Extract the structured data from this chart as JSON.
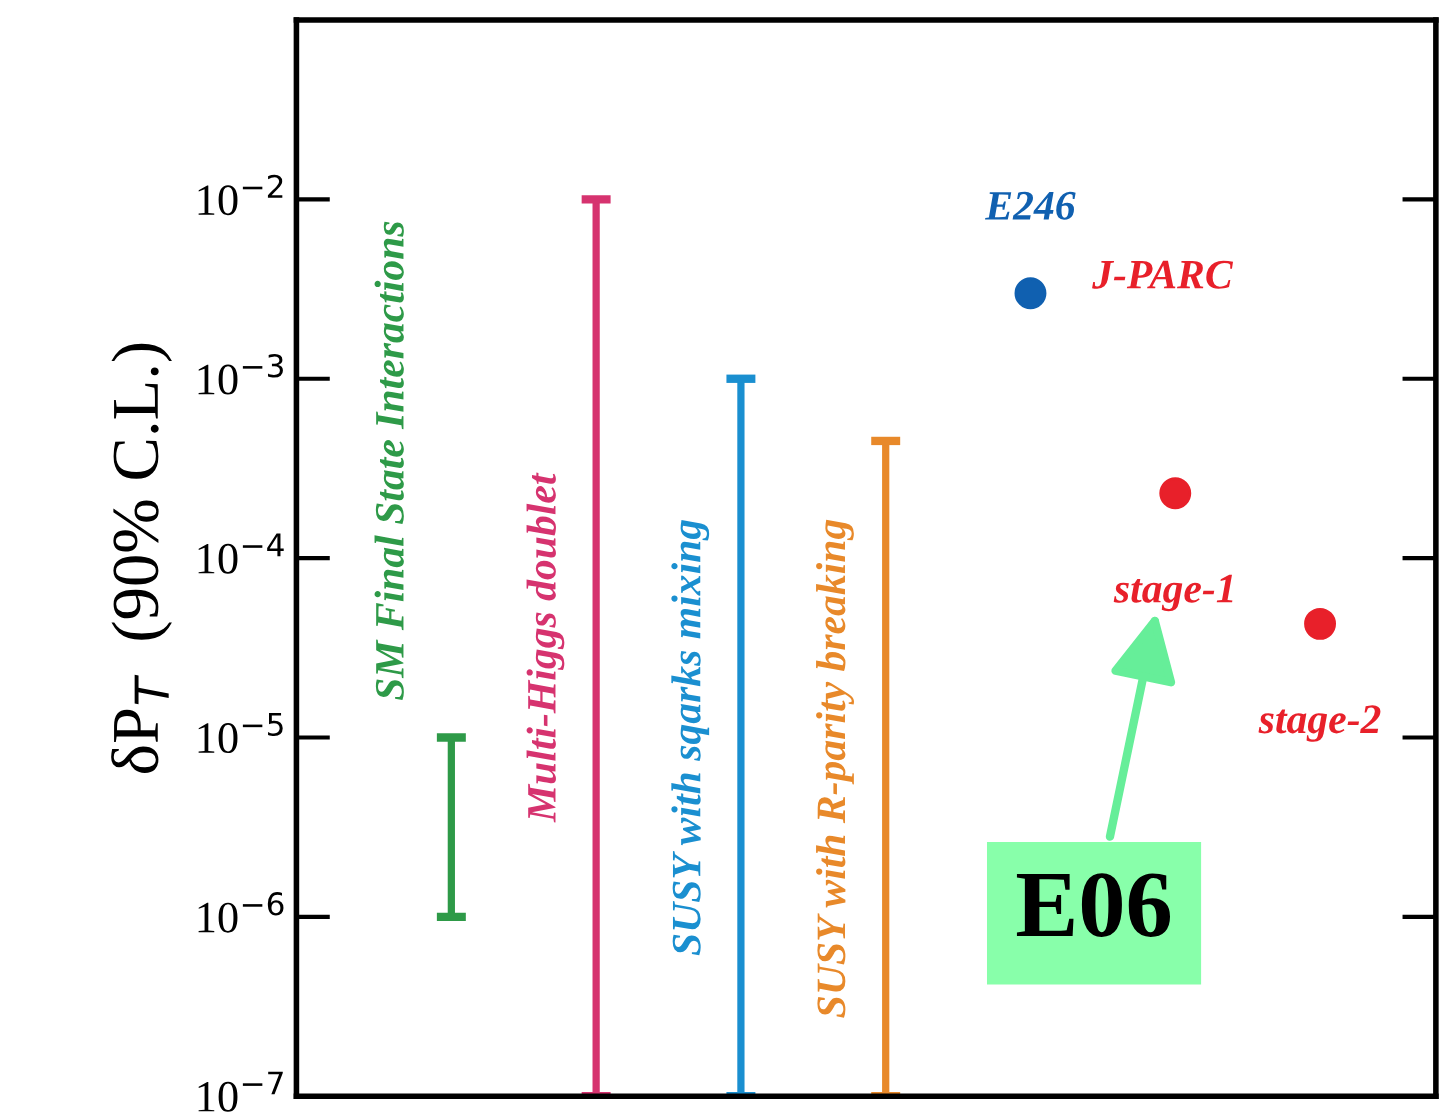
{
  "chart_data": {
    "type": "bar",
    "ylabel": "δP$_{T}$  (90% C.L.)",
    "categories": [
      "SM Final State Interactions",
      "Multi-Higgs doublet",
      "SUSY with sqarks mixing",
      "SUSY with R-parity breaking",
      "E246",
      "stage-1",
      "stage-2"
    ],
    "series": [
      {
        "base": [
          1e-06,
          1e-07,
          1e-07,
          1e-07,
          null,
          null,
          null
        ],
        "values": [
          9e-06,
          0.01,
          0.001,
          0.00045,
          null,
          null,
          null
        ],
        "colors": [
          "#2e9a48",
          "#d6336f",
          "#1a8fd0",
          "#e8892a",
          null,
          null,
          null
        ]
      },
      {
        "type": "scatter",
        "marker": "circle",
        "values": [
          null,
          null,
          null,
          null,
          0.003,
          0.00023,
          4.3e-05
        ],
        "colors": [
          null,
          null,
          null,
          null,
          "#1060b0",
          "#e8202a",
          "#e8202a"
        ]
      }
    ],
    "log": "y",
    "ylim": [
      1e-07,
      0.1
    ],
    "yticks": [
      {
        "value": 1e-07,
        "label": "10$^{−7}$"
      },
      {
        "value": 1e-06,
        "label": "10$^{−6}$"
      },
      {
        "value": 1e-05,
        "label": "10$^{−5}$"
      },
      {
        "value": 0.0001,
        "label": "10$^{−4}$"
      },
      {
        "value": 0.001,
        "label": "10$^{−3}$"
      },
      {
        "value": 0.01,
        "label": "10$^{−2}$"
      }
    ],
    "tick_labels": "y",
    "grid": false,
    "annotations": [
      "J-PARC",
      "E06"
    ]
  }
}
